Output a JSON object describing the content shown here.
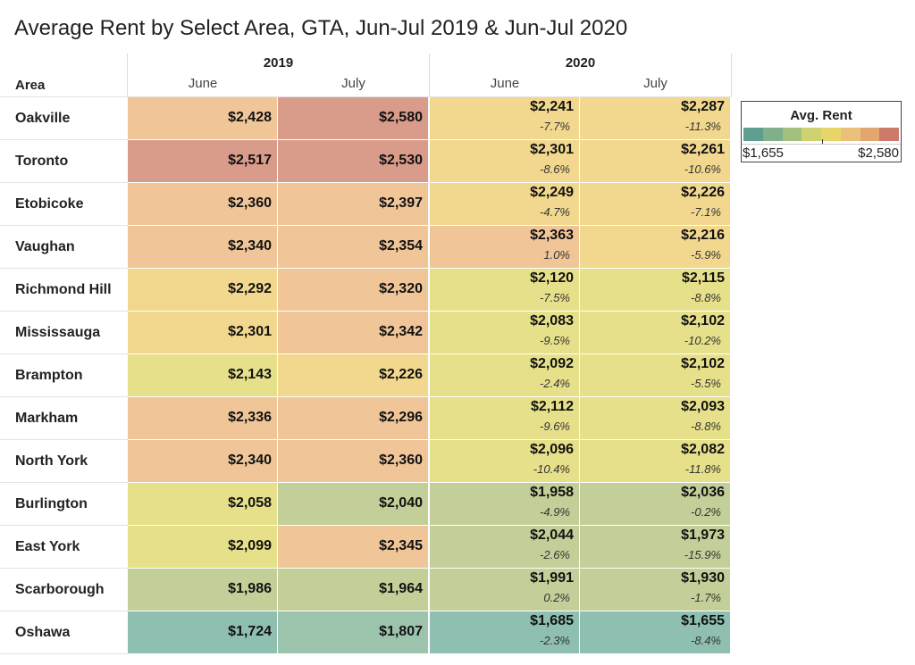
{
  "title": "Average Rent by Select Area, GTA, Jun-Jul 2019 & Jun-Jul 2020",
  "chart_data": {
    "type": "table",
    "row_header": "Area",
    "years": [
      "2019",
      "2020"
    ],
    "months": [
      "June",
      "July"
    ],
    "columns": [
      "2019 June",
      "2019 July",
      "2020 June",
      "2020 July"
    ],
    "rows": [
      {
        "area": "Oakville",
        "rent": [
          "$2,428",
          "$2,580",
          "$2,241",
          "$2,287"
        ],
        "change": [
          "",
          "",
          "-7.7%",
          "-11.3%"
        ]
      },
      {
        "area": "Toronto",
        "rent": [
          "$2,517",
          "$2,530",
          "$2,301",
          "$2,261"
        ],
        "change": [
          "",
          "",
          "-8.6%",
          "-10.6%"
        ]
      },
      {
        "area": "Etobicoke",
        "rent": [
          "$2,360",
          "$2,397",
          "$2,249",
          "$2,226"
        ],
        "change": [
          "",
          "",
          "-4.7%",
          "-7.1%"
        ]
      },
      {
        "area": "Vaughan",
        "rent": [
          "$2,340",
          "$2,354",
          "$2,363",
          "$2,216"
        ],
        "change": [
          "",
          "",
          "1.0%",
          "-5.9%"
        ]
      },
      {
        "area": "Richmond Hill",
        "rent": [
          "$2,292",
          "$2,320",
          "$2,120",
          "$2,115"
        ],
        "change": [
          "",
          "",
          "-7.5%",
          "-8.8%"
        ]
      },
      {
        "area": "Mississauga",
        "rent": [
          "$2,301",
          "$2,342",
          "$2,083",
          "$2,102"
        ],
        "change": [
          "",
          "",
          "-9.5%",
          "-10.2%"
        ]
      },
      {
        "area": "Brampton",
        "rent": [
          "$2,143",
          "$2,226",
          "$2,092",
          "$2,102"
        ],
        "change": [
          "",
          "",
          "-2.4%",
          "-5.5%"
        ]
      },
      {
        "area": "Markham",
        "rent": [
          "$2,336",
          "$2,296",
          "$2,112",
          "$2,093"
        ],
        "change": [
          "",
          "",
          "-9.6%",
          "-8.8%"
        ]
      },
      {
        "area": "North York",
        "rent": [
          "$2,340",
          "$2,360",
          "$2,096",
          "$2,082"
        ],
        "change": [
          "",
          "",
          "-10.4%",
          "-11.8%"
        ]
      },
      {
        "area": "Burlington",
        "rent": [
          "$2,058",
          "$2,040",
          "$1,958",
          "$2,036"
        ],
        "change": [
          "",
          "",
          "-4.9%",
          "-0.2%"
        ]
      },
      {
        "area": "East York",
        "rent": [
          "$2,099",
          "$2,345",
          "$2,044",
          "$1,973"
        ],
        "change": [
          "",
          "",
          "-2.6%",
          "-15.9%"
        ]
      },
      {
        "area": "Scarborough",
        "rent": [
          "$1,986",
          "$1,964",
          "$1,991",
          "$1,930"
        ],
        "change": [
          "",
          "",
          "0.2%",
          "-1.7%"
        ]
      },
      {
        "area": "Oshawa",
        "rent": [
          "$1,724",
          "$1,807",
          "$1,685",
          "$1,655"
        ],
        "change": [
          "",
          "",
          "-2.3%",
          "-8.4%"
        ]
      }
    ],
    "legend": {
      "title": "Avg. Rent",
      "min_label": "$1,655",
      "max_label": "$2,580",
      "min": 1655,
      "max": 2580,
      "palette": [
        "#5f9e8f",
        "#7fb08a",
        "#a3c07e",
        "#cfd270",
        "#e7d569",
        "#ebc07a",
        "#e3a66e",
        "#cd7a6a"
      ]
    },
    "cell_colors": [
      [
        "#f0c699",
        "#d99b8a",
        "#f2d88e",
        "#f2d88e"
      ],
      [
        "#d99b8a",
        "#d99b8a",
        "#f2d88e",
        "#f2d88e"
      ],
      [
        "#f0c699",
        "#f0c699",
        "#f2d88e",
        "#f2d88e"
      ],
      [
        "#f0c699",
        "#f0c699",
        "#f0c699",
        "#f2d88e"
      ],
      [
        "#f2d88e",
        "#f0c699",
        "#e6e08a",
        "#e6e08a"
      ],
      [
        "#f2d88e",
        "#f0c699",
        "#e6e08a",
        "#e6e08a"
      ],
      [
        "#e6e08a",
        "#f2d88e",
        "#e6e08a",
        "#e6e08a"
      ],
      [
        "#f0c699",
        "#f0c699",
        "#e6e08a",
        "#e6e08a"
      ],
      [
        "#f0c699",
        "#f0c699",
        "#e6e08a",
        "#e6e08a"
      ],
      [
        "#e6e08a",
        "#c2cf98",
        "#c2cf98",
        "#c2cf98"
      ],
      [
        "#e6e08a",
        "#f0c699",
        "#c2cf98",
        "#c2cf98"
      ],
      [
        "#c2cf98",
        "#c2cf98",
        "#c2cf98",
        "#c2cf98"
      ],
      [
        "#8ebfb0",
        "#9cc4ad",
        "#8ebfb0",
        "#8ebfb0"
      ]
    ]
  }
}
